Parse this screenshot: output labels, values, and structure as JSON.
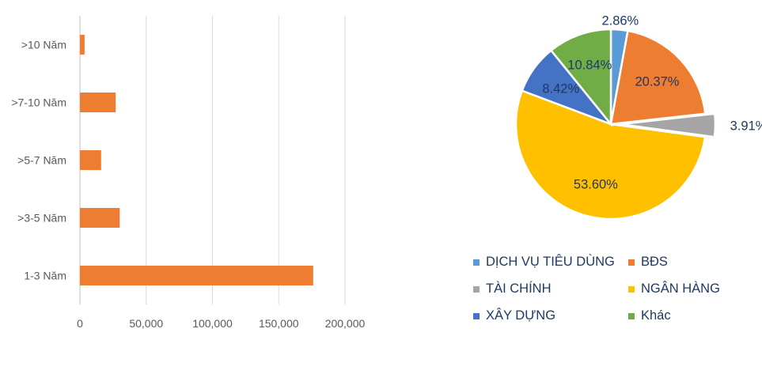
{
  "chart_data": [
    {
      "type": "bar",
      "orientation": "horizontal",
      "categories": [
        ">10 Năm",
        ">7-10 Năm",
        ">5-7 Năm",
        ">3-5 Năm",
        "1-3 Năm"
      ],
      "values": [
        3500,
        27000,
        16000,
        30000,
        176000
      ],
      "xlim": [
        0,
        200000
      ],
      "xticks": [
        "0",
        "50,000",
        "100,000",
        "150,000",
        "200,000"
      ],
      "xtick_values": [
        0,
        50000,
        100000,
        150000,
        200000
      ],
      "grid": true,
      "color": "#ed7d31"
    },
    {
      "type": "pie",
      "slices": [
        {
          "label": "DỊCH VỤ TIÊU DÙNG",
          "value": 2.86,
          "text": "2.86%",
          "color": "#5b9bd5"
        },
        {
          "label": "BĐS",
          "value": 20.37,
          "text": "20.37%",
          "color": "#ed7d31"
        },
        {
          "label": "TÀI CHÍNH",
          "value": 3.91,
          "text": "3.91%",
          "color": "#a5a5a5"
        },
        {
          "label": "NGÂN HÀNG",
          "value": 53.6,
          "text": "53.60%",
          "color": "#ffc000"
        },
        {
          "label": "XÂY DỰNG",
          "value": 8.42,
          "text": "8.42%",
          "color": "#4472c4"
        },
        {
          "label": "Khác",
          "value": 10.84,
          "text": "10.84%",
          "color": "#70ad47"
        }
      ],
      "legend_position": "bottom"
    }
  ]
}
